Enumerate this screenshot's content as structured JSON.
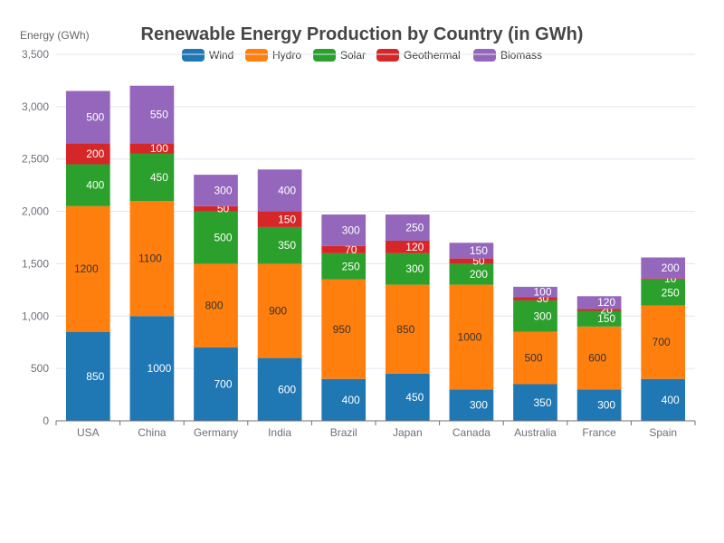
{
  "chart_data": {
    "type": "bar",
    "stacked": true,
    "title": "Renewable Energy Production by Country (in GWh)",
    "xlabel": "",
    "ylabel": "Energy (GWh)",
    "ylim": [
      0,
      3500
    ],
    "yticks": [
      0,
      500,
      1000,
      1500,
      2000,
      2500,
      3000,
      3500
    ],
    "ytick_labels": [
      "0",
      "500",
      "1,000",
      "1,500",
      "2,000",
      "2,500",
      "3,000",
      "3,500"
    ],
    "grid": true,
    "legend_position": "top",
    "categories": [
      "USA",
      "China",
      "Germany",
      "India",
      "Brazil",
      "Japan",
      "Canada",
      "Australia",
      "France",
      "Spain"
    ],
    "series": [
      {
        "name": "Wind",
        "color": "#1f77b4",
        "values": [
          850,
          1000,
          700,
          600,
          400,
          450,
          300,
          350,
          300,
          400
        ]
      },
      {
        "name": "Hydro",
        "color": "#ff7f0e",
        "values": [
          1200,
          1100,
          800,
          900,
          950,
          850,
          1000,
          500,
          600,
          700
        ]
      },
      {
        "name": "Solar",
        "color": "#2ca02c",
        "values": [
          400,
          450,
          500,
          350,
          250,
          300,
          200,
          300,
          150,
          250
        ]
      },
      {
        "name": "Geothermal",
        "color": "#d62728",
        "values": [
          200,
          100,
          50,
          150,
          70,
          120,
          50,
          30,
          20,
          10
        ]
      },
      {
        "name": "Biomass",
        "color": "#9467bd",
        "values": [
          500,
          550,
          300,
          400,
          300,
          250,
          150,
          100,
          120,
          200
        ]
      }
    ]
  }
}
